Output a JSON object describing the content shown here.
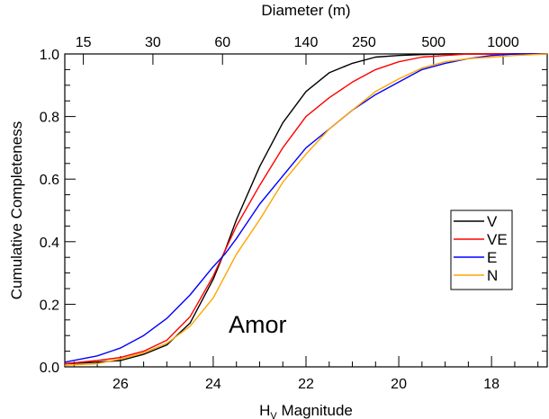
{
  "chart_data": {
    "type": "line",
    "title": "",
    "annotation": "Amor",
    "annotation_color": "#4B0082",
    "xlabel_main": "H",
    "xlabel_sub": "V",
    "xlabel_tail": " Magnitude",
    "ylabel": "Cumulative Completeness",
    "top_axis_label": "Diameter (m)",
    "xlim": [
      27.2,
      16.8
    ],
    "ylim": [
      0.0,
      1.0
    ],
    "x_ticks": [
      26,
      24,
      22,
      20,
      18
    ],
    "y_ticks": [
      0.0,
      0.2,
      0.4,
      0.6,
      0.8,
      1.0
    ],
    "top_ticks": [
      {
        "label": "15",
        "h": 26.8
      },
      {
        "label": "30",
        "h": 25.3
      },
      {
        "label": "60",
        "h": 23.8
      },
      {
        "label": "140",
        "h": 22.0
      },
      {
        "label": "250",
        "h": 20.75
      },
      {
        "label": "500",
        "h": 19.25
      },
      {
        "label": "1000",
        "h": 17.75
      }
    ],
    "legend_position": "right",
    "x": [
      27.2,
      26.5,
      26.0,
      25.5,
      25.0,
      24.5,
      24.0,
      23.75,
      23.5,
      23.0,
      22.5,
      22.0,
      21.5,
      21.0,
      20.5,
      20.0,
      19.5,
      19.0,
      18.5,
      18.0,
      17.5,
      16.8
    ],
    "series": [
      {
        "name": "V",
        "color": "#000000",
        "values": [
          0.01,
          0.015,
          0.02,
          0.04,
          0.07,
          0.14,
          0.28,
          0.37,
          0.47,
          0.64,
          0.78,
          0.88,
          0.94,
          0.97,
          0.99,
          0.995,
          0.998,
          1.0,
          1.0,
          1.0,
          1.0,
          1.0
        ]
      },
      {
        "name": "VE",
        "color": "#FF0000",
        "values": [
          0.01,
          0.02,
          0.03,
          0.05,
          0.085,
          0.16,
          0.29,
          0.37,
          0.45,
          0.58,
          0.7,
          0.8,
          0.86,
          0.91,
          0.95,
          0.975,
          0.99,
          0.995,
          1.0,
          1.0,
          1.0,
          1.0
        ]
      },
      {
        "name": "E",
        "color": "#0000FF",
        "values": [
          0.015,
          0.035,
          0.06,
          0.1,
          0.155,
          0.23,
          0.32,
          0.36,
          0.41,
          0.52,
          0.61,
          0.7,
          0.76,
          0.82,
          0.87,
          0.91,
          0.95,
          0.97,
          0.985,
          0.995,
          1.0,
          1.0
        ]
      },
      {
        "name": "N",
        "color": "#FFA500",
        "values": [
          0.005,
          0.01,
          0.025,
          0.045,
          0.075,
          0.13,
          0.22,
          0.29,
          0.36,
          0.47,
          0.59,
          0.68,
          0.76,
          0.82,
          0.88,
          0.92,
          0.955,
          0.975,
          0.985,
          0.99,
          0.995,
          1.0
        ]
      }
    ]
  }
}
